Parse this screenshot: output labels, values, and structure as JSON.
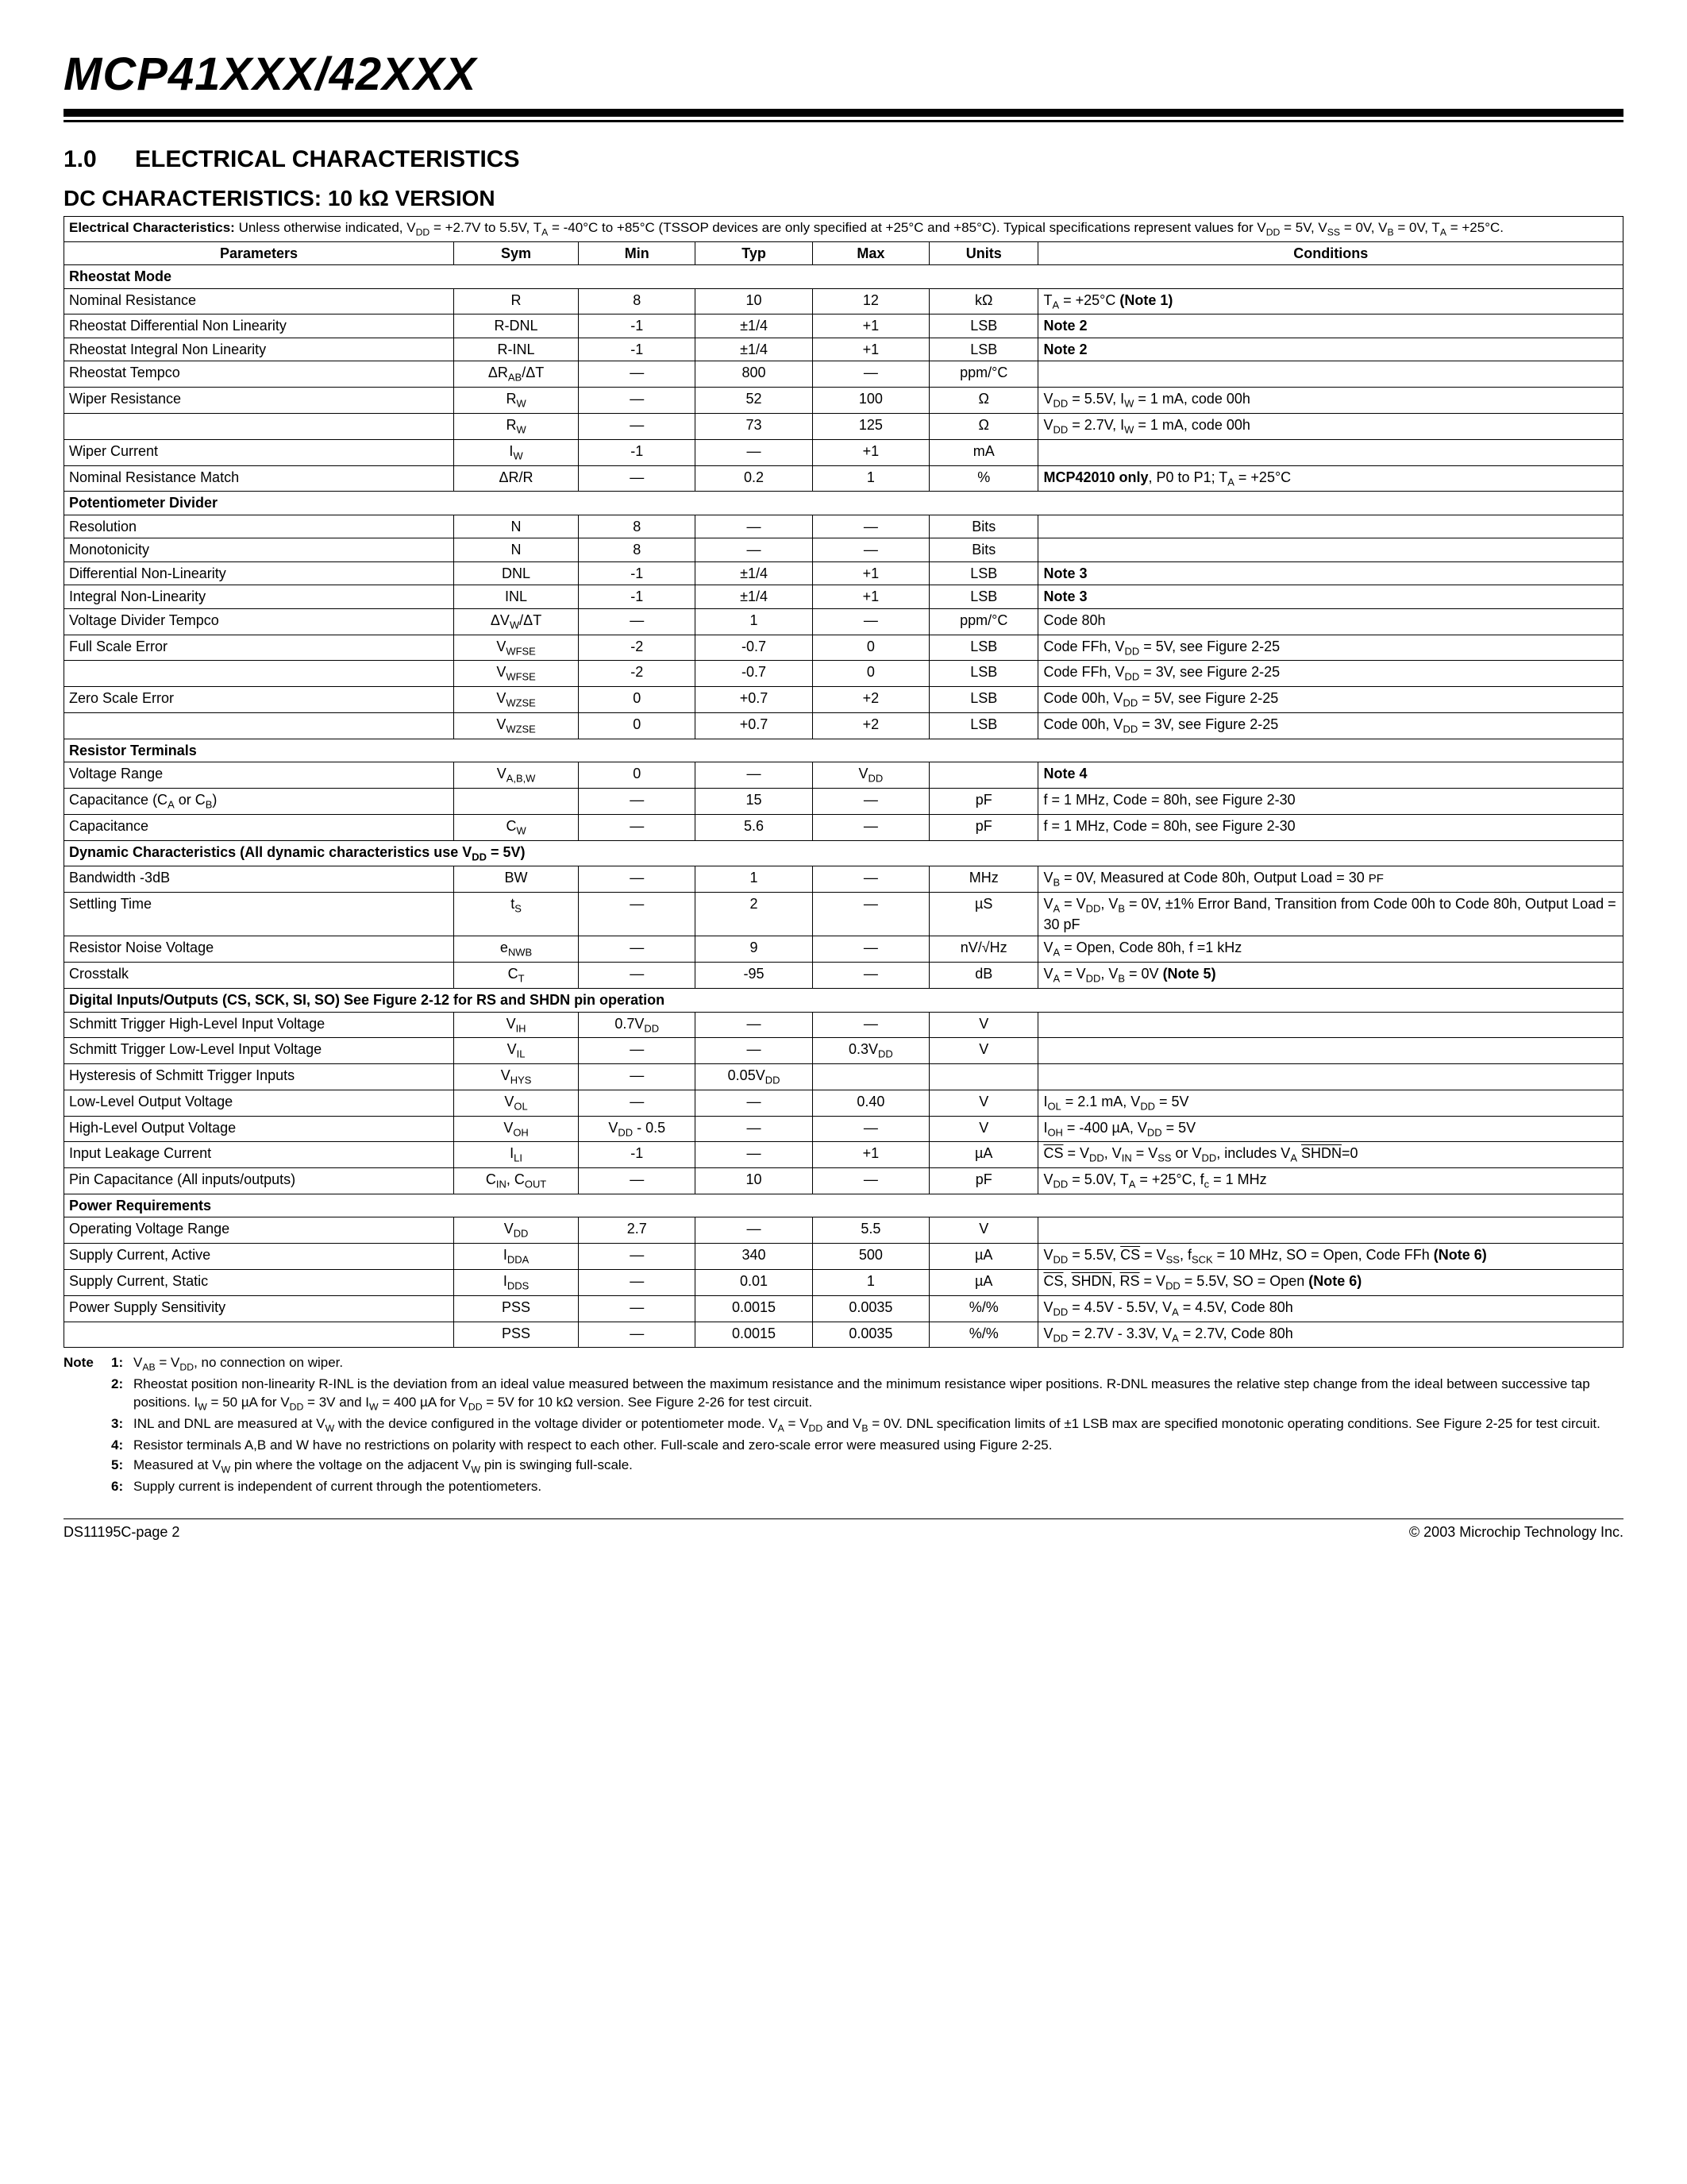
{
  "header": {
    "part": "MCP41XXX/42XXX"
  },
  "section": {
    "num": "1.0",
    "title": "ELECTRICAL CHARACTERISTICS"
  },
  "subsection": "DC CHARACTERISTICS: 10 kΩ VERSION",
  "topnote": "Electrical Characteristics: Unless otherwise indicated, V<sub>DD</sub> = +2.7V to 5.5V, T<sub>A</sub> = -40°C to +85°C (TSSOP devices are only specified at +25°C and +85°C). Typical specifications represent values for V<sub>DD</sub> = 5V, V<sub>SS</sub> = 0V, V<sub>B</sub> = 0V, T<sub>A</sub> = +25°C.",
  "columns": [
    "Parameters",
    "Sym",
    "Min",
    "Typ",
    "Max",
    "Units",
    "Conditions"
  ],
  "groups": [
    {
      "title": "Rheostat Mode",
      "rows": [
        {
          "p": "Nominal Resistance",
          "s": "R",
          "min": "8",
          "typ": "10",
          "max": "12",
          "u": "kΩ",
          "c": "T<sub>A</sub> = +25°C <b>(Note 1)</b>"
        },
        {
          "p": "Rheostat Differential Non Linearity",
          "s": "R-DNL",
          "min": "-1",
          "typ": "±1/4",
          "max": "+1",
          "u": "LSB",
          "c": "<b>Note 2</b>"
        },
        {
          "p": "Rheostat Integral Non Linearity",
          "s": "R-INL",
          "min": "-1",
          "typ": "±1/4",
          "max": "+1",
          "u": "LSB",
          "c": "<b>Note 2</b>"
        },
        {
          "p": "Rheostat Tempco",
          "s": "ΔR<sub>AB</sub>/ΔT",
          "min": "—",
          "typ": "800",
          "max": "—",
          "u": "ppm/°C",
          "c": ""
        },
        {
          "p": "Wiper Resistance",
          "s": "R<sub>W</sub>",
          "min": "—",
          "typ": "52",
          "max": "100",
          "u": "Ω",
          "c": "V<sub>DD</sub> = 5.5V, I<sub>W</sub> = 1 mA, code 00h"
        },
        {
          "p": "",
          "s": "R<sub>W</sub>",
          "min": "—",
          "typ": "73",
          "max": "125",
          "u": "Ω",
          "c": "V<sub>DD</sub> = 2.7V, I<sub>W</sub> = 1 mA, code 00h"
        },
        {
          "p": "Wiper Current",
          "s": "I<sub>W</sub>",
          "min": "-1",
          "typ": "—",
          "max": "+1",
          "u": "mA",
          "c": ""
        },
        {
          "p": "Nominal Resistance Match",
          "s": "ΔR/R",
          "min": "—",
          "typ": "0.2",
          "max": "1",
          "u": "%",
          "c": "<b>MCP42010 only</b>, P0 to P1; T<sub>A</sub> = +25°C"
        }
      ]
    },
    {
      "title": "Potentiometer Divider",
      "rows": [
        {
          "p": "Resolution",
          "s": "N",
          "min": "8",
          "typ": "—",
          "max": "—",
          "u": "Bits",
          "c": ""
        },
        {
          "p": "Monotonicity",
          "s": "N",
          "min": "8",
          "typ": "—",
          "max": "—",
          "u": "Bits",
          "c": ""
        },
        {
          "p": "Differential Non-Linearity",
          "s": "DNL",
          "min": "-1",
          "typ": "±1/4",
          "max": "+1",
          "u": "LSB",
          "c": "<b>Note 3</b>"
        },
        {
          "p": "Integral Non-Linearity",
          "s": "INL",
          "min": "-1",
          "typ": "±1/4",
          "max": "+1",
          "u": "LSB",
          "c": "<b>Note 3</b>"
        },
        {
          "p": "Voltage Divider Tempco",
          "s": "ΔV<sub>W</sub>/ΔT",
          "min": "—",
          "typ": "1",
          "max": "—",
          "u": "ppm/°C",
          "c": "Code 80h"
        },
        {
          "p": "Full Scale Error",
          "s": "V<sub>WFSE</sub>",
          "min": "-2",
          "typ": "-0.7",
          "max": "0",
          "u": "LSB",
          "c": "Code FFh, V<sub>DD</sub> = 5V, see Figure 2-25"
        },
        {
          "p": "",
          "s": "V<sub>WFSE</sub>",
          "min": "-2",
          "typ": "-0.7",
          "max": "0",
          "u": "LSB",
          "c": "Code FFh, V<sub>DD</sub> = 3V, see Figure 2-25"
        },
        {
          "p": "Zero Scale Error",
          "s": "V<sub>WZSE</sub>",
          "min": "0",
          "typ": "+0.7",
          "max": "+2",
          "u": "LSB",
          "c": "Code 00h, V<sub>DD</sub> = 5V, see Figure 2-25"
        },
        {
          "p": "",
          "s": "V<sub>WZSE</sub>",
          "min": "0",
          "typ": "+0.7",
          "max": "+2",
          "u": "LSB",
          "c": "Code 00h, V<sub>DD</sub> = 3V, see Figure 2-25"
        }
      ]
    },
    {
      "title": "Resistor Terminals",
      "rows": [
        {
          "p": "Voltage Range",
          "s": "V<sub>A,B,W</sub>",
          "min": "0",
          "typ": "—",
          "max": "V<sub>DD</sub>",
          "u": "",
          "c": "<b>Note 4</b>"
        },
        {
          "p": "Capacitance (C<sub>A</sub> or C<sub>B</sub>)",
          "s": "",
          "min": "—",
          "typ": "15",
          "max": "—",
          "u": "pF",
          "c": "f = 1 MHz, Code = 80h, see Figure 2-30"
        },
        {
          "p": "Capacitance",
          "s": "C<sub>W</sub>",
          "min": "—",
          "typ": "5.6",
          "max": "—",
          "u": "pF",
          "c": "f = 1 MHz, Code = 80h, see Figure 2-30"
        }
      ]
    },
    {
      "title": "Dynamic Characteristics (All dynamic characteristics use V<sub>DD</sub> = 5V)",
      "rows": [
        {
          "p": "Bandwidth -3dB",
          "s": "BW",
          "min": "—",
          "typ": "1",
          "max": "—",
          "u": "MHz",
          "c": "V<sub>B</sub> = 0V, Measured at Code 80h, Output Load = 30 <small>PF</small>"
        },
        {
          "p": "Settling Time",
          "s": "t<sub>S</sub>",
          "min": "—",
          "typ": "2",
          "max": "—",
          "u": "µS",
          "c": "V<sub>A</sub> = V<sub>DD</sub>, V<sub>B</sub> = 0V, ±1% Error Band, Transition from Code 00h to Code 80h, Output Load = 30 pF"
        },
        {
          "p": "Resistor Noise Voltage",
          "s": "e<sub>NWB</sub>",
          "min": "—",
          "typ": "9",
          "max": "—",
          "u": "nV/√Hz",
          "c": "V<sub>A</sub> = Open, Code 80h, f =1 kHz"
        },
        {
          "p": "Crosstalk",
          "s": "C<sub>T</sub>",
          "min": "—",
          "typ": "-95",
          "max": "—",
          "u": "dB",
          "c": "V<sub>A</sub> = V<sub>DD</sub>, V<sub>B</sub> = 0V <b>(Note 5)</b>"
        }
      ]
    },
    {
      "title": "Digital Inputs/Outputs (CS, SCK, SI, SO) See Figure 2-12 for RS and SHDN pin operation",
      "rows": [
        {
          "p": "Schmitt Trigger High-Level Input Voltage",
          "s": "V<sub>IH</sub>",
          "min": "0.7V<sub>DD</sub>",
          "typ": "—",
          "max": "—",
          "u": "V",
          "c": ""
        },
        {
          "p": "Schmitt Trigger Low-Level Input Voltage",
          "s": "V<sub>IL</sub>",
          "min": "—",
          "typ": "—",
          "max": "0.3V<sub>DD</sub>",
          "u": "V",
          "c": ""
        },
        {
          "p": "Hysteresis of Schmitt Trigger Inputs",
          "s": "V<sub>HYS</sub>",
          "min": "—",
          "typ": "0.05V<sub>DD</sub>",
          "max": "",
          "u": "",
          "c": ""
        },
        {
          "p": "Low-Level Output Voltage",
          "s": "V<sub>OL</sub>",
          "min": "—",
          "typ": "—",
          "max": "0.40",
          "u": "V",
          "c": "I<sub>OL</sub> = 2.1 mA, V<sub>DD</sub> = 5V"
        },
        {
          "p": "High-Level Output Voltage",
          "s": "V<sub>OH</sub>",
          "min": "V<sub>DD</sub> - 0.5",
          "typ": "—",
          "max": "—",
          "u": "V",
          "c": "I<sub>OH</sub> = -400 µA, V<sub>DD</sub> = 5V"
        },
        {
          "p": "Input Leakage Current",
          "s": "I<sub>LI</sub>",
          "min": "-1",
          "typ": "—",
          "max": "+1",
          "u": "µA",
          "c": "<span class='ovl'>CS</span> = V<sub>DD</sub>, V<sub>IN</sub> = V<sub>SS</sub> or V<sub>DD</sub>, includes V<sub>A</sub> <span class='ovl'>SHDN</span>=0"
        },
        {
          "p": "Pin Capacitance (All inputs/outputs)",
          "s": "C<sub>IN</sub>, C<sub>OUT</sub>",
          "min": "—",
          "typ": "10",
          "max": "—",
          "u": "pF",
          "c": "V<sub>DD</sub> = 5.0V, T<sub>A</sub> = +25°C, f<sub>c</sub> = 1 MHz"
        }
      ]
    },
    {
      "title": "Power Requirements",
      "rows": [
        {
          "p": "Operating Voltage Range",
          "s": "V<sub>DD</sub>",
          "min": "2.7",
          "typ": "—",
          "max": "5.5",
          "u": "V",
          "c": ""
        },
        {
          "p": "Supply Current, Active",
          "s": "I<sub>DDA</sub>",
          "min": "—",
          "typ": "340",
          "max": "500",
          "u": "µA",
          "c": "V<sub>DD</sub> = 5.5V, <span class='ovl'>CS</span> = V<sub>SS</sub>, f<sub>SCK</sub> = 10 MHz, SO = Open, Code FFh <b>(Note 6)</b>"
        },
        {
          "p": "Supply Current, Static",
          "s": "I<sub>DDS</sub>",
          "min": "—",
          "typ": "0.01",
          "max": "1",
          "u": "µA",
          "c": "<span class='ovl'>CS</span>, <span class='ovl'>SHDN</span>, <span class='ovl'>RS</span> = V<sub>DD</sub> = 5.5V, SO = Open <b>(Note 6)</b>"
        },
        {
          "p": "Power Supply Sensitivity",
          "s": "PSS",
          "min": "—",
          "typ": "0.0015",
          "max": "0.0035",
          "u": "%/%",
          "c": "V<sub>DD</sub> = 4.5V - 5.5V, V<sub>A</sub> = 4.5V, Code 80h"
        },
        {
          "p": "",
          "s": "PSS",
          "min": "—",
          "typ": "0.0015",
          "max": "0.0035",
          "u": "%/%",
          "c": "V<sub>DD</sub> = 2.7V - 3.3V, V<sub>A</sub> = 2.7V, Code 80h"
        }
      ]
    }
  ],
  "notes": [
    {
      "n": "1:",
      "t": "V<sub>AB</sub> = V<sub>DD</sub>, no connection on wiper."
    },
    {
      "n": "2:",
      "t": "Rheostat position non-linearity R-INL is the deviation from an ideal value measured between the maximum resistance and the minimum resistance wiper positions. R-DNL measures the relative step change from the ideal between successive tap positions. I<sub>W</sub> = 50 µA for V<sub>DD</sub> = 3V and I<sub>W</sub> = 400 µA for V<sub>DD</sub> = 5V for 10 kΩ version. See Figure 2-26 for test circuit."
    },
    {
      "n": "3:",
      "t": "INL and DNL are measured at V<sub>W</sub> with the device configured in the voltage divider or potentiometer mode. V<sub>A</sub> = V<sub>DD</sub> and V<sub>B</sub> = 0V. DNL specification limits of ±1 LSB max are specified monotonic operating conditions. See Figure 2-25 for test circuit."
    },
    {
      "n": "4:",
      "t": "Resistor terminals A,B and W have no restrictions on polarity with respect to each other. Full-scale and zero-scale error were measured using Figure 2-25."
    },
    {
      "n": "5:",
      "t": "Measured at V<sub>W</sub> pin where the voltage on the adjacent V<sub>W</sub> pin is swinging full-scale."
    },
    {
      "n": "6:",
      "t": "Supply current is independent of current through the potentiometers."
    }
  ],
  "footer": {
    "left": "DS11195C-page 2",
    "right": "© 2003 Microchip Technology Inc."
  }
}
